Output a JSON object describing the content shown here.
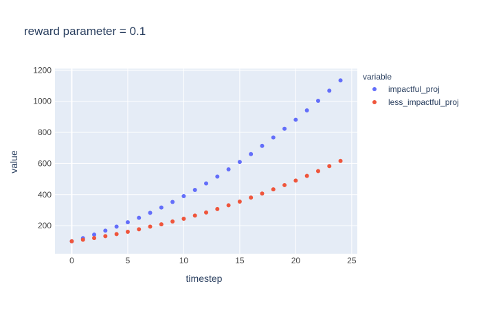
{
  "colors": {
    "impactful_proj": "#636efa",
    "less_impactful_proj": "#ef553b",
    "plot_bg": "#e5ecf6",
    "grid": "#ffffff",
    "text": "#2a3f5f",
    "tick_text": "#444444"
  },
  "chart_data": {
    "type": "scatter",
    "title": "reward parameter = 0.1",
    "xlabel": "timestep",
    "ylabel": "value",
    "xlim": [
      -1.5,
      25.5
    ],
    "ylim": [
      20,
      1210
    ],
    "xticks": [
      0,
      5,
      10,
      15,
      20,
      25
    ],
    "yticks": [
      200,
      400,
      600,
      800,
      1000,
      1200
    ],
    "legend": {
      "title": "variable",
      "placement": "top-right (outside plot)"
    },
    "grid": true,
    "x": [
      0,
      1,
      2,
      3,
      4,
      5,
      6,
      7,
      8,
      9,
      10,
      11,
      12,
      13,
      14,
      15,
      16,
      17,
      18,
      19,
      20,
      21,
      22,
      23,
      24
    ],
    "series": [
      {
        "name": "impactful_proj",
        "values": [
          100,
          120,
          143,
          168,
          194,
          222,
          251,
          283,
          317,
          353,
          390,
          430,
          472,
          516,
          562,
          610,
          660,
          713,
          767,
          823,
          881,
          941,
          1003,
          1068,
          1134
        ]
      },
      {
        "name": "less_impactful_proj",
        "values": [
          100,
          110,
          121,
          133,
          146,
          161,
          177,
          194,
          209,
          227,
          245,
          265,
          285,
          307,
          331,
          355,
          381,
          407,
          434,
          461,
          490,
          520,
          551,
          583,
          616
        ]
      }
    ]
  }
}
